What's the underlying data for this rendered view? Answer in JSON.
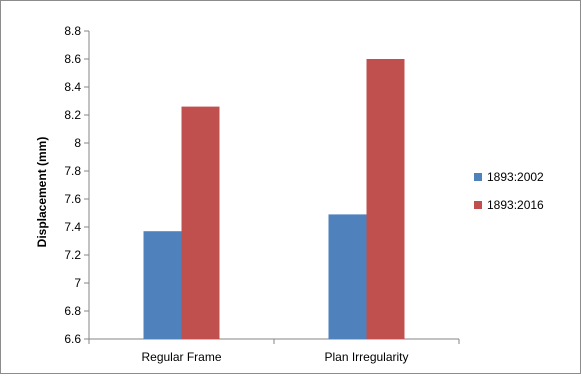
{
  "chart_data": {
    "type": "bar",
    "title": "",
    "xlabel": "",
    "ylabel": "Displacement (mm)",
    "ylim": [
      6.6,
      8.8
    ],
    "yticks": [
      6.6,
      6.8,
      7,
      7.2,
      7.4,
      7.6,
      7.8,
      8,
      8.2,
      8.4,
      8.6,
      8.8
    ],
    "categories": [
      "Regular Frame",
      "Plan Irregularity"
    ],
    "series": [
      {
        "name": "1893:2002",
        "values": [
          7.37,
          7.49
        ],
        "color": "#4F81BD"
      },
      {
        "name": "1893:2016",
        "values": [
          8.26,
          8.6
        ],
        "color": "#C0504D"
      }
    ],
    "grid": false,
    "legend_position": "right"
  }
}
